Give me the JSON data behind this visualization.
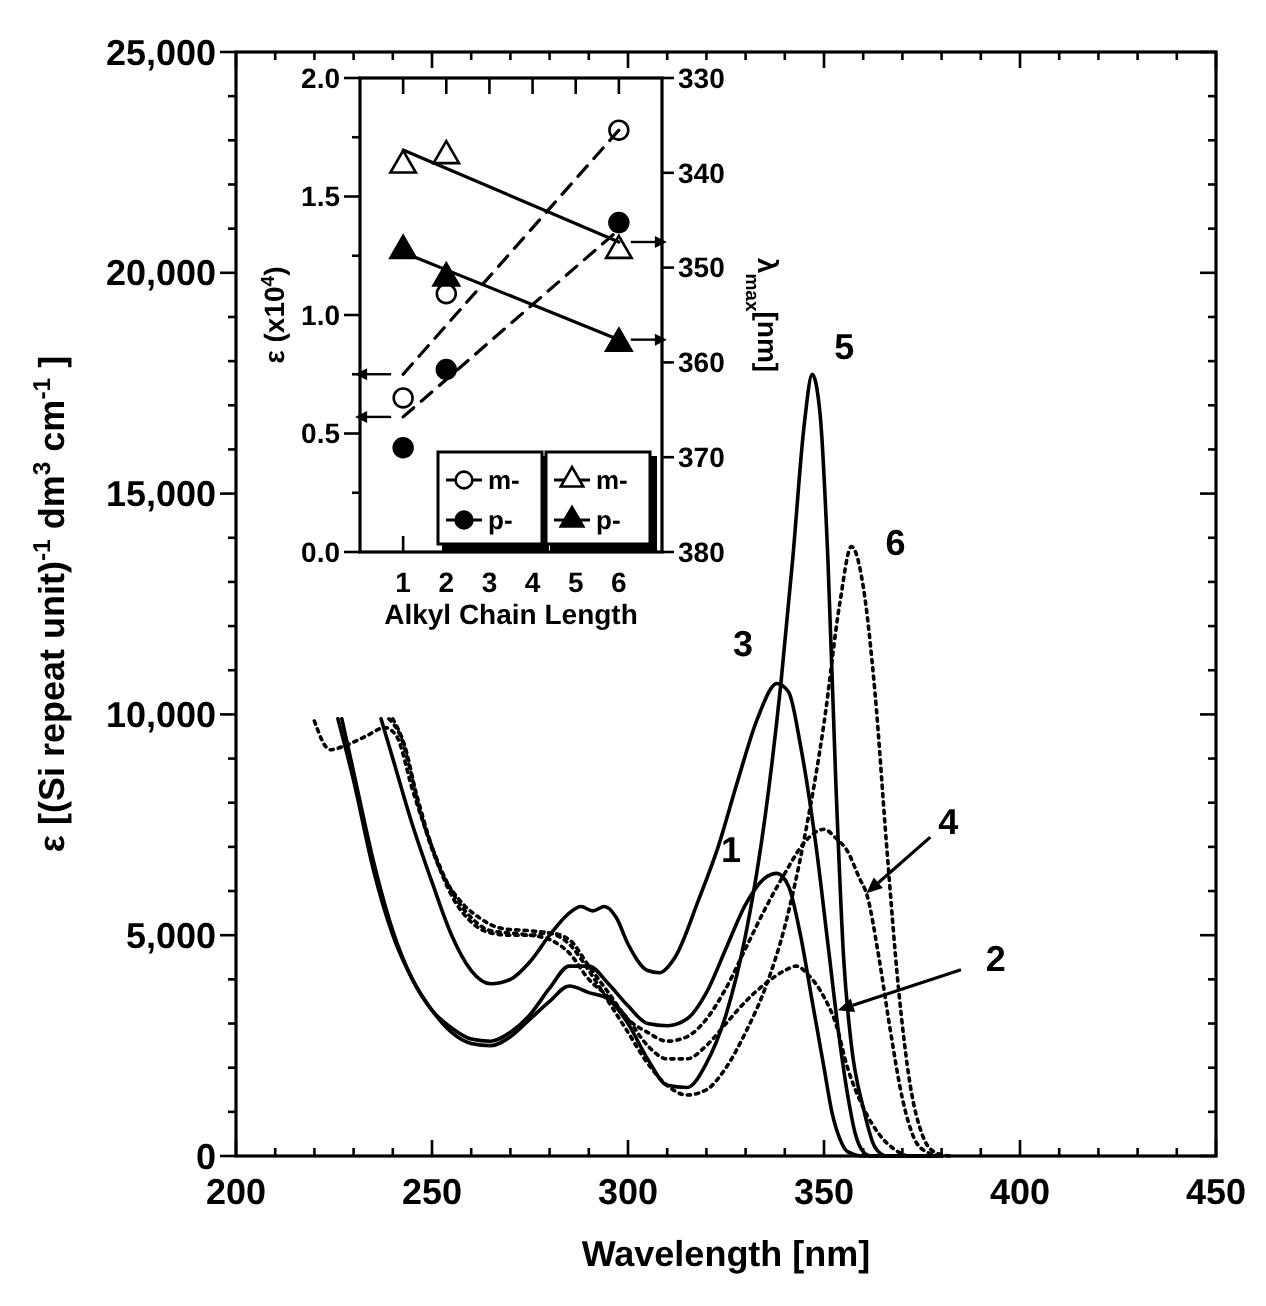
{
  "chart_data": [
    {
      "type": "line",
      "xlabel": "Wavelength [nm]",
      "ylabel": "ε [(Si repeat unit)$^{-1}$ dm$^{3}$ cm$^{-1}$ ]",
      "xlim": [
        200,
        450
      ],
      "ylim": [
        0,
        25000
      ],
      "xticks": [
        200,
        {
          "value": 210,
          "label": null
        },
        {
          "value": 220,
          "label": null
        },
        {
          "value": 230,
          "label": null
        },
        {
          "value": 240,
          "label": null
        },
        250,
        {
          "value": 260,
          "label": null
        },
        {
          "value": 270,
          "label": null
        },
        {
          "value": 280,
          "label": null
        },
        {
          "value": 290,
          "label": null
        },
        300,
        {
          "value": 310,
          "label": null
        },
        {
          "value": 320,
          "label": null
        },
        {
          "value": 330,
          "label": null
        },
        {
          "value": 340,
          "label": null
        },
        350,
        {
          "value": 360,
          "label": null
        },
        {
          "value": 370,
          "label": null
        },
        {
          "value": 380,
          "label": null
        },
        {
          "value": 390,
          "label": null
        },
        400,
        {
          "value": 410,
          "label": null
        },
        {
          "value": 420,
          "label": null
        },
        {
          "value": 430,
          "label": null
        },
        {
          "value": 440,
          "label": null
        },
        450
      ],
      "yticks": [
        0,
        {
          "value": 1000,
          "label": null
        },
        {
          "value": 2000,
          "label": null
        },
        {
          "value": 3000,
          "label": null
        },
        {
          "value": 4000,
          "label": null
        },
        {
          "value": 5000,
          "label": "5,000"
        },
        {
          "value": 6000,
          "label": null
        },
        {
          "value": 7000,
          "label": null
        },
        {
          "value": 8000,
          "label": null
        },
        {
          "value": 9000,
          "label": null
        },
        {
          "value": 10000,
          "label": "10,000"
        },
        {
          "value": 11000,
          "label": null
        },
        {
          "value": 12000,
          "label": null
        },
        {
          "value": 13000,
          "label": null
        },
        {
          "value": 14000,
          "label": null
        },
        {
          "value": 15000,
          "label": "15,000"
        },
        {
          "value": 16000,
          "label": null
        },
        {
          "value": 17000,
          "label": null
        },
        {
          "value": 18000,
          "label": null
        },
        {
          "value": 19000,
          "label": null
        },
        {
          "value": 20000,
          "label": "20,000"
        },
        {
          "value": 21000,
          "label": null
        },
        {
          "value": 22000,
          "label": null
        },
        {
          "value": 23000,
          "label": null
        },
        {
          "value": 24000,
          "label": null
        },
        {
          "value": 25000,
          "label": "25,000"
        }
      ],
      "series": [
        {
          "color": "#000000",
          "line_style": "solid",
          "x": [
            226,
            230,
            235,
            240,
            245,
            250,
            255,
            260,
            265,
            270,
            275,
            280,
            285,
            290,
            295,
            300,
            305,
            310,
            315,
            320,
            325,
            330,
            335,
            338,
            341,
            344,
            347,
            350,
            352,
            354,
            356,
            360,
            380
          ],
          "values": [
            9900,
            8500,
            6500,
            5000,
            4000,
            3300,
            2900,
            2650,
            2600,
            2800,
            3200,
            3800,
            4300,
            4300,
            3900,
            3400,
            3000,
            2950,
            3100,
            3700,
            4700,
            5700,
            6300,
            6400,
            6100,
            5000,
            3500,
            2000,
            1000,
            400,
            100,
            0,
            0
          ]
        },
        {
          "color": "#000000",
          "line_style": "dotted",
          "x": [
            220,
            224,
            228,
            233,
            238,
            241,
            245,
            250,
            255,
            260,
            265,
            270,
            275,
            280,
            285,
            290,
            295,
            300,
            305,
            310,
            315,
            320,
            325,
            330,
            335,
            340,
            343,
            346,
            350,
            353,
            356,
            360,
            364,
            368,
            372,
            380
          ],
          "values": [
            9850,
            9200,
            9300,
            9500,
            9700,
            9500,
            8300,
            7000,
            6000,
            5400,
            5100,
            5050,
            5000,
            4900,
            4600,
            4000,
            3600,
            3100,
            2500,
            2200,
            2200,
            2500,
            3000,
            3500,
            3900,
            4200,
            4300,
            4100,
            3600,
            3000,
            2000,
            1100,
            500,
            150,
            0,
            0
          ]
        },
        {
          "color": "#000000",
          "line_style": "solid",
          "x": [
            237,
            240,
            245,
            250,
            255,
            260,
            265,
            270,
            275,
            280,
            285,
            288,
            291,
            294,
            297,
            300,
            305,
            308,
            312,
            318,
            323,
            328,
            333,
            338,
            341,
            344,
            348,
            351,
            354,
            356,
            358,
            360,
            362,
            380
          ],
          "values": [
            9900,
            9000,
            7500,
            6200,
            5000,
            4200,
            3900,
            4000,
            4400,
            5000,
            5500,
            5650,
            5550,
            5650,
            5400,
            4800,
            4200,
            4150,
            4500,
            5800,
            7000,
            8500,
            9900,
            10700,
            10500,
            9300,
            7000,
            4800,
            2600,
            1400,
            500,
            100,
            0,
            0
          ]
        },
        {
          "color": "#000000",
          "line_style": "dotted",
          "x": [
            239,
            242,
            246,
            250,
            255,
            260,
            265,
            270,
            275,
            280,
            285,
            290,
            295,
            300,
            305,
            310,
            315,
            320,
            325,
            330,
            335,
            340,
            345,
            350,
            353,
            356,
            359,
            361,
            364,
            367,
            370,
            373,
            376,
            380
          ],
          "values": [
            9900,
            9500,
            8200,
            7000,
            5900,
            5300,
            5050,
            5000,
            5000,
            5050,
            4900,
            4300,
            3700,
            3100,
            2800,
            2600,
            2700,
            3100,
            3800,
            4700,
            5600,
            6400,
            7100,
            7400,
            7200,
            6900,
            6300,
            5900,
            4500,
            2800,
            1300,
            400,
            100,
            0
          ]
        },
        {
          "color": "#000000",
          "line_style": "solid",
          "x": [
            227,
            230,
            235,
            240,
            245,
            250,
            255,
            260,
            265,
            270,
            275,
            280,
            285,
            290,
            295,
            300,
            305,
            310,
            315,
            320,
            325,
            330,
            335,
            339,
            342,
            345,
            347,
            349,
            351,
            353,
            355,
            357,
            360,
            363,
            366,
            380
          ],
          "values": [
            9900,
            8700,
            6700,
            5100,
            4000,
            3300,
            2800,
            2550,
            2500,
            2700,
            3100,
            3500,
            3850,
            3700,
            3550,
            3000,
            2200,
            1600,
            1550,
            2100,
            3200,
            5000,
            7700,
            10700,
            13500,
            16600,
            17700,
            16800,
            13500,
            8500,
            4500,
            2500,
            1100,
            200,
            0,
            0
          ]
        },
        {
          "color": "#000000",
          "line_style": "dotted",
          "x": [
            240,
            243,
            247,
            252,
            257,
            262,
            268,
            275,
            280,
            285,
            290,
            295,
            300,
            305,
            310,
            315,
            320,
            325,
            330,
            335,
            340,
            345,
            350,
            354,
            357,
            360,
            363,
            366,
            369,
            372,
            375,
            378,
            382
          ],
          "values": [
            9900,
            9300,
            7800,
            6500,
            5800,
            5400,
            5150,
            5100,
            5050,
            4800,
            4200,
            3500,
            2800,
            2100,
            1600,
            1380,
            1500,
            2000,
            2800,
            3800,
            5200,
            7200,
            9800,
            12500,
            13800,
            12900,
            10500,
            7000,
            3800,
            1600,
            500,
            100,
            0
          ]
        }
      ],
      "annotations": [
        {
          "text": "1",
          "x": 338,
          "y": 6400
        },
        {
          "text": "2",
          "x": 353.5,
          "y": 3300
        },
        {
          "text": "3",
          "x": 338,
          "y": 10700
        },
        {
          "text": "4",
          "x": 360.8,
          "y": 5950
        },
        {
          "text": "5",
          "x": 347,
          "y": 17700
        },
        {
          "text": "6",
          "x": 357,
          "y": 13800
        }
      ]
    },
    {
      "type": "scatter",
      "xlabel": "Alkyl Chain Length",
      "ylabel": "ε (x10$^{4}$)",
      "y2label": "λ$_{max}$[nm]",
      "xlim": [
        0,
        7
      ],
      "xticks": [
        1,
        2,
        3,
        4,
        5,
        6
      ],
      "ylim": [
        0,
        2
      ],
      "yticks": [
        {
          "value": 0,
          "label": "0.0"
        },
        {
          "value": 0.25,
          "label": null
        },
        {
          "value": 0.5,
          "label": "0.5"
        },
        {
          "value": 0.75,
          "label": null
        },
        {
          "value": 1,
          "label": "1.0"
        },
        {
          "value": 1.25,
          "label": null
        },
        {
          "value": 1.5,
          "label": "1.5"
        },
        {
          "value": 1.75,
          "label": null
        },
        {
          "value": 2,
          "label": "2.0"
        }
      ],
      "y2lim": [
        380,
        330
      ],
      "y2ticks": [
        330,
        340,
        350,
        360,
        370,
        380
      ],
      "legend": "bottom right",
      "series": [
        {
          "name": "m-",
          "color": "#ffffff",
          "marker": "circle",
          "axis": "y",
          "x": [
            1,
            2,
            6
          ],
          "values": [
            0.65,
            1.09,
            1.78
          ]
        },
        {
          "name": "p-",
          "color": "#000000",
          "marker": "circle",
          "axis": "y",
          "x": [
            1,
            2,
            6
          ],
          "values": [
            0.44,
            0.77,
            1.39
          ]
        },
        {
          "name": "m-",
          "color": "#ffffff",
          "marker": "triangle",
          "axis": "y2",
          "x": [
            1,
            2,
            6
          ],
          "values": [
            339.2,
            338.2,
            348.2
          ]
        },
        {
          "name": "p-",
          "color": "#000000",
          "marker": "triangle",
          "axis": "y2",
          "x": [
            1,
            2,
            6
          ],
          "values": [
            348.2,
            351.1,
            358
          ]
        },
        {
          "type": "line",
          "color": "#000000",
          "line_style": "dashed",
          "axis": "y",
          "x": [
            1,
            6
          ],
          "values": [
            0.75,
            1.78
          ]
        },
        {
          "type": "line",
          "color": "#000000",
          "line_style": "dashed",
          "axis": "y",
          "x": [
            1,
            6
          ],
          "values": [
            0.57,
            1.36
          ]
        },
        {
          "type": "line",
          "color": "#000000",
          "line_style": "solid",
          "axis": "y2",
          "x": [
            1,
            6
          ],
          "values": [
            337.6,
            347.3
          ]
        },
        {
          "type": "line",
          "color": "#000000",
          "line_style": "solid",
          "axis": "y2",
          "x": [
            1,
            6
          ],
          "values": [
            348.4,
            357.6
          ]
        }
      ]
    }
  ]
}
